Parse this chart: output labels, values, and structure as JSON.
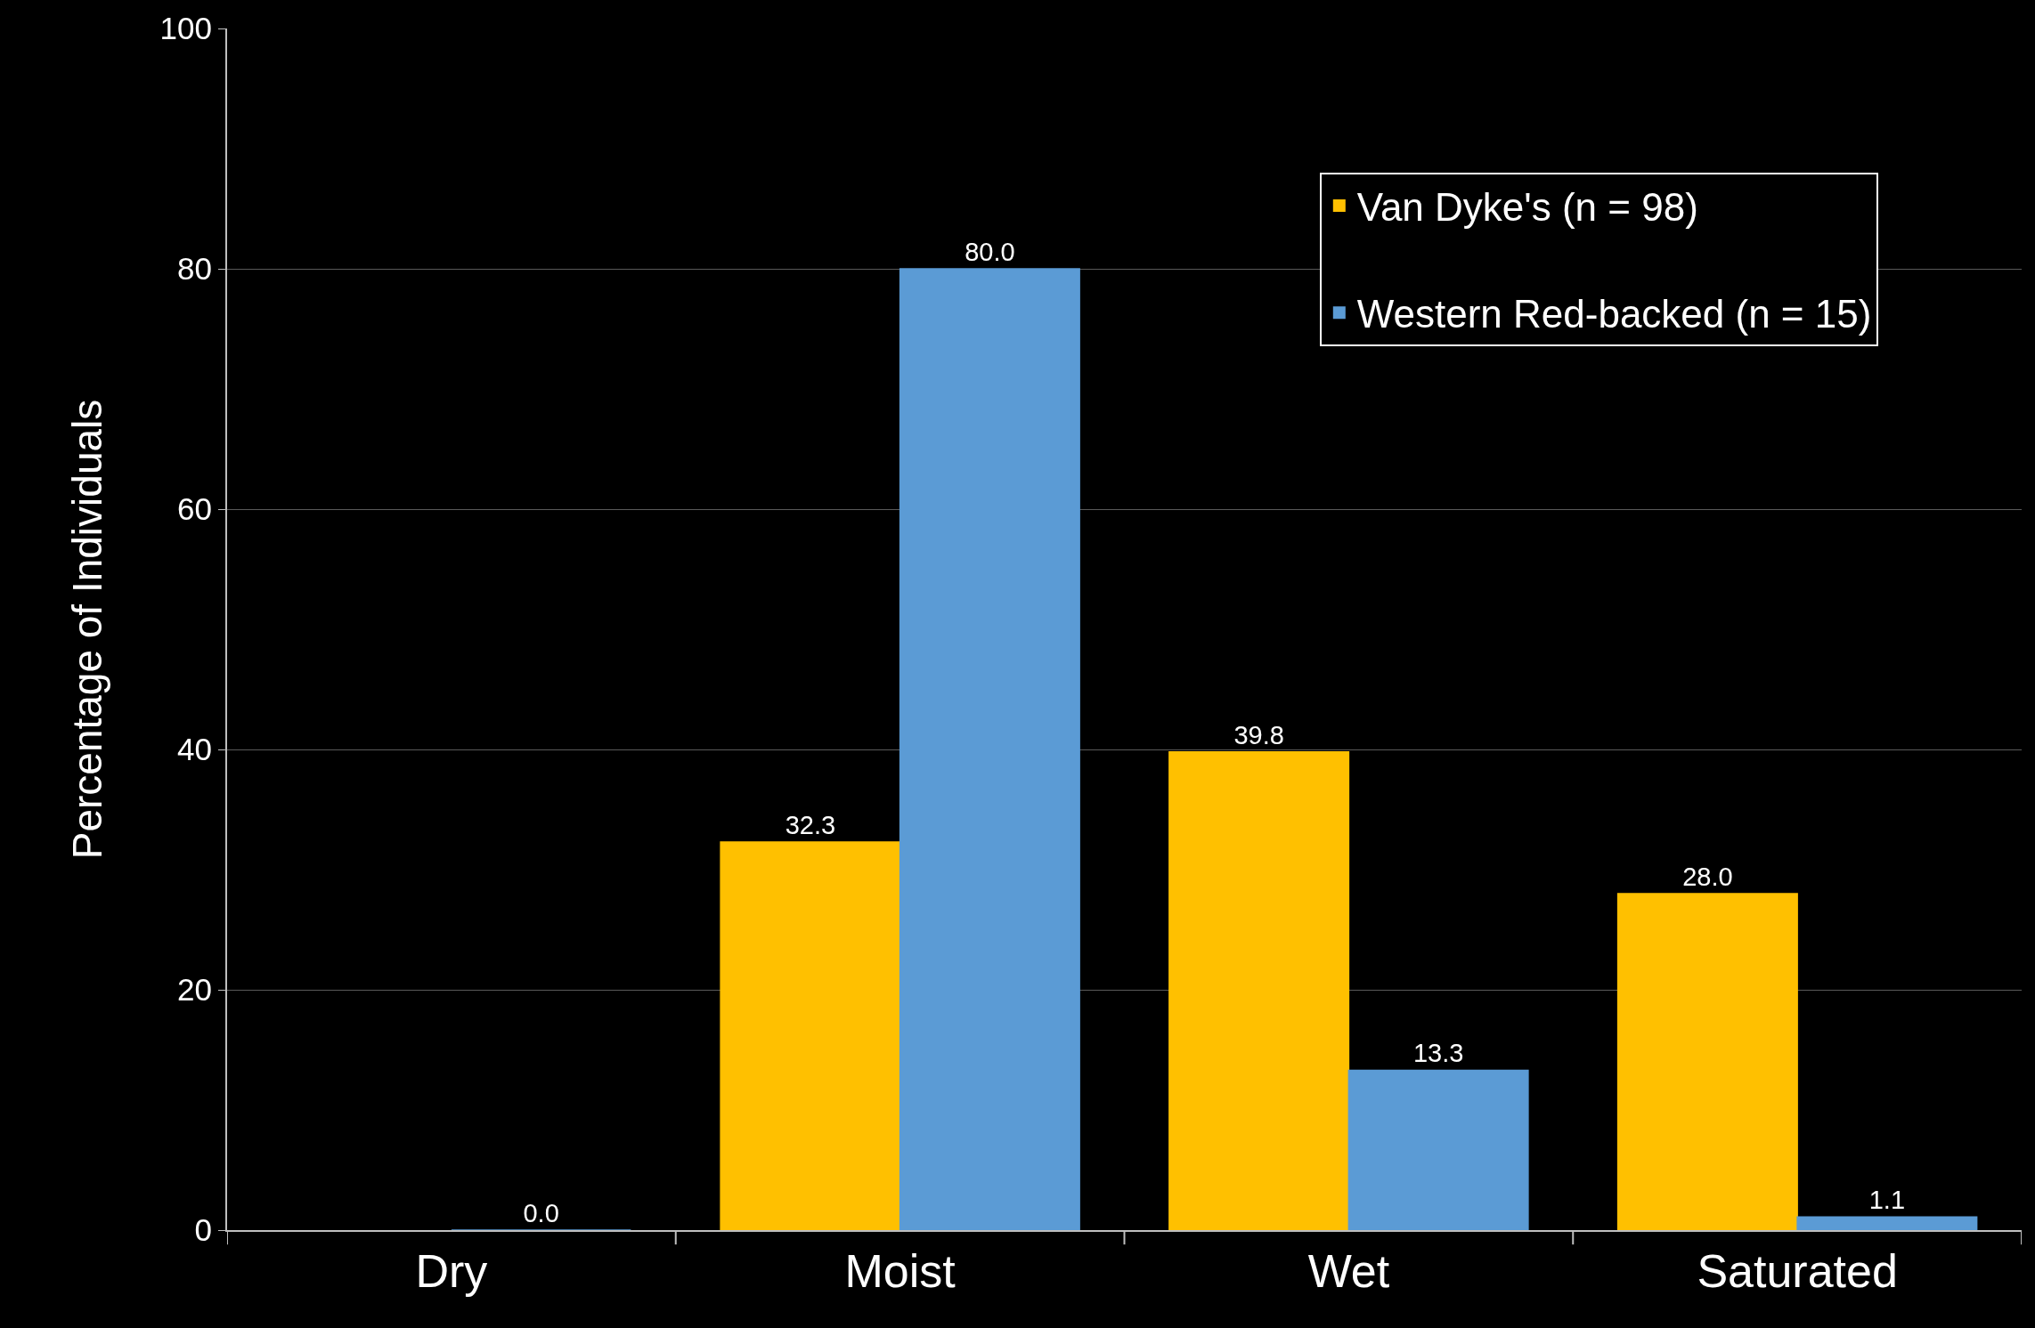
{
  "chart_data": {
    "type": "bar",
    "ylabel": "Percentage of Individuals",
    "categories": [
      "Dry",
      "Moist",
      "Wet",
      "Saturated"
    ],
    "series": [
      {
        "name": "Van Dyke's (n = 98)",
        "color": "#ffc000",
        "values": [
          null,
          32.3,
          39.8,
          28.0
        ],
        "value_labels": [
          null,
          "32.3",
          "39.8",
          "28.0"
        ]
      },
      {
        "name": "Western Red-backed (n = 15)",
        "color": "#5b9bd5",
        "values": [
          0.0,
          80.0,
          13.3,
          1.1
        ],
        "value_labels": [
          "0.0",
          "80.0",
          "13.3",
          "1.1"
        ]
      }
    ],
    "ylim": [
      0,
      100
    ],
    "yticks": [
      0,
      20,
      40,
      60,
      80,
      100
    ],
    "grid": "y",
    "legend": "top right"
  }
}
